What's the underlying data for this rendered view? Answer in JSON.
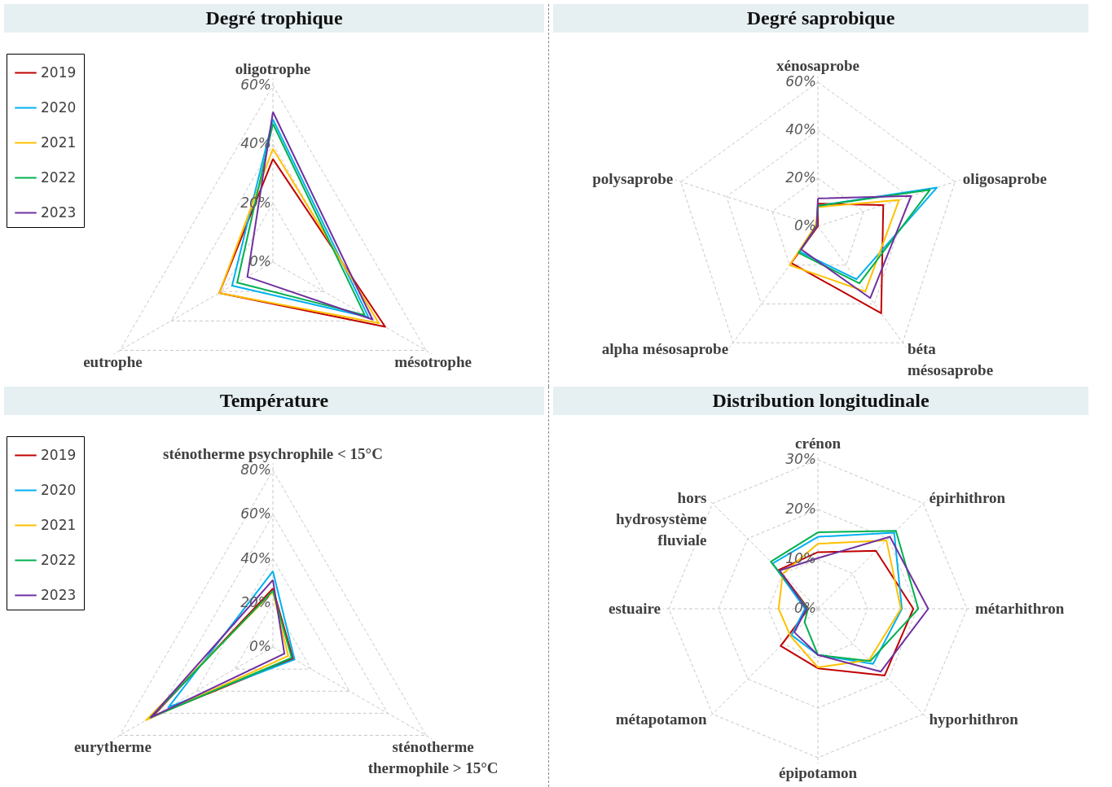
{
  "chart_data": [
    {
      "type": "radar",
      "title": "Degré trophique",
      "categories": [
        "oligotrophe",
        "mésotrophe",
        "eutrophe"
      ],
      "ylim": [
        0,
        60
      ],
      "yticks": [
        {
          "value": 0,
          "label": "0%"
        },
        {
          "value": 20,
          "label": "20%"
        },
        {
          "value": 40,
          "label": "40%"
        },
        {
          "value": 60,
          "label": "60%"
        }
      ],
      "grid": true,
      "legend": "top left",
      "series": [
        {
          "name": "2019",
          "color": "#c00000",
          "values": [
            35,
            44,
            21
          ]
        },
        {
          "name": "2020",
          "color": "#00b0f0",
          "values": [
            48.5,
            37.5,
            16
          ]
        },
        {
          "name": "2021",
          "color": "#ffc000",
          "values": [
            38.5,
            41.5,
            21
          ]
        },
        {
          "name": "2022",
          "color": "#00b050",
          "values": [
            47,
            36,
            14
          ]
        },
        {
          "name": "2023",
          "color": "#7030a0",
          "values": [
            51,
            39,
            10
          ]
        }
      ]
    },
    {
      "type": "radar",
      "title": "Degré saprobique",
      "categories": [
        "xénosaprobe",
        "oligosaprobe",
        "béta mésosaprobe",
        "alpha mésosaprobe",
        "polysaprobe"
      ],
      "ylim": [
        0,
        60
      ],
      "yticks": [
        {
          "value": 0,
          "label": "0%"
        },
        {
          "value": 20,
          "label": "20%"
        },
        {
          "value": 40,
          "label": "40%"
        },
        {
          "value": 60,
          "label": "60%"
        }
      ],
      "grid": true,
      "series": [
        {
          "color": "#c00000",
          "values": [
            9.4,
            28.6,
            44.8,
            18.9,
            0
          ]
        },
        {
          "color": "#00b0f0",
          "values": [
            8.5,
            52,
            27.3,
            13,
            0.5
          ]
        },
        {
          "color": "#ffc000",
          "values": [
            8,
            35.5,
            33.6,
            20,
            1
          ]
        },
        {
          "color": "#00b050",
          "values": [
            8.5,
            49,
            29.4,
            13.7,
            0.5
          ]
        },
        {
          "color": "#7030a0",
          "values": [
            11.6,
            40.8,
            37,
            11.9,
            0.5
          ]
        }
      ]
    },
    {
      "type": "radar",
      "title": "Température",
      "categories": [
        "sténotherme psychrophile < 15°C",
        "sténotherme thermophile > 15°C",
        "eurytherme"
      ],
      "ylim": [
        0,
        80
      ],
      "yticks": [
        {
          "value": 0,
          "label": "0%"
        },
        {
          "value": 20,
          "label": "20%"
        },
        {
          "value": 40,
          "label": "40%"
        },
        {
          "value": 60,
          "label": "60%"
        },
        {
          "value": 80,
          "label": "80%"
        }
      ],
      "grid": true,
      "legend": "top left",
      "series": [
        {
          "name": "2019",
          "color": "#c00000",
          "values": [
            26.5,
            10.5,
            63
          ]
        },
        {
          "name": "2020",
          "color": "#00b0f0",
          "values": [
            34.3,
            11.3,
            54.6
          ]
        },
        {
          "name": "2021",
          "color": "#ffc000",
          "values": [
            25,
            8,
            66.3
          ]
        },
        {
          "name": "2022",
          "color": "#00b050",
          "values": [
            25.5,
            9.8,
            64
          ]
        },
        {
          "name": "2023",
          "color": "#7030a0",
          "values": [
            30.4,
            6,
            63.8
          ]
        }
      ]
    },
    {
      "type": "radar",
      "title": "Distribution longitudinale",
      "categories": [
        "crénon",
        "épirhithron",
        "métarhithron",
        "hyporhithron",
        "épipotamon",
        "métapotamon",
        "estuaire",
        "hors hydrosystème fluviale"
      ],
      "ylim": [
        0,
        30
      ],
      "yticks": [
        {
          "value": 0,
          "label": "0%"
        },
        {
          "value": 10,
          "label": "10%"
        },
        {
          "value": 20,
          "label": "20%"
        },
        {
          "value": 30,
          "label": "30%"
        }
      ],
      "grid": true,
      "series": [
        {
          "color": "#c00000",
          "values": [
            11.4,
            16.5,
            19.2,
            19,
            12,
            10.6,
            1.9,
            11.1
          ]
        },
        {
          "color": "#00b0f0",
          "values": [
            14.5,
            21.7,
            16.9,
            15.7,
            9.3,
            7.5,
            2.6,
            12.9
          ]
        },
        {
          "color": "#ffc000",
          "values": [
            13.1,
            19.5,
            16.7,
            14.6,
            11.8,
            7.8,
            7.9,
            10
          ]
        },
        {
          "color": "#00b050",
          "values": [
            15.4,
            22.2,
            20.2,
            14.9,
            9.3,
            3.8,
            2,
            13.4
          ]
        },
        {
          "color": "#7030a0",
          "values": [
            10.2,
            20.5,
            22.2,
            17.9,
            9.3,
            6.7,
            2.3,
            10.9
          ]
        }
      ]
    }
  ]
}
